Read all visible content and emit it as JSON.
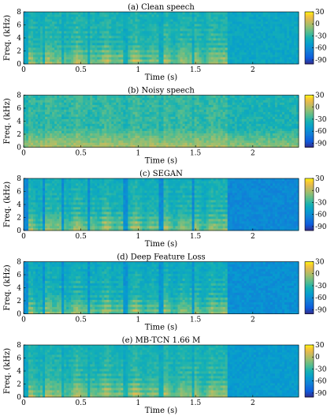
{
  "chart_data": [
    {
      "type": "heatmap",
      "title": "(a) Clean speech",
      "xlabel": "Time (s)",
      "ylabel": "Freq. (kHz)",
      "xlim": [
        0,
        2.4
      ],
      "ylim": [
        0,
        8
      ],
      "xticks": [
        "0",
        "0.5",
        "1",
        "1.5",
        "2"
      ],
      "xtick_values": [
        0,
        0.5,
        1,
        1.5,
        2
      ],
      "yticks": [
        "0",
        "2",
        "4",
        "6",
        "8"
      ],
      "ytick_values": [
        0,
        2,
        4,
        6,
        8
      ],
      "colorbar": {
        "range": [
          -100,
          30
        ],
        "ticks": [
          "30",
          "0",
          "-30",
          "-60",
          "-90"
        ],
        "tick_values": [
          30,
          0,
          -30,
          -60,
          -90
        ],
        "colormap": "parula"
      },
      "texture": "clean"
    },
    {
      "type": "heatmap",
      "title": "(b) Noisy speech",
      "xlabel": "Time (s)",
      "ylabel": "Freq. (kHz)",
      "xlim": [
        0,
        2.4
      ],
      "ylim": [
        0,
        8
      ],
      "xticks": [
        "0",
        "0.5",
        "1",
        "1.5",
        "2"
      ],
      "xtick_values": [
        0,
        0.5,
        1,
        1.5,
        2
      ],
      "yticks": [
        "0",
        "2",
        "4",
        "6",
        "8"
      ],
      "ytick_values": [
        0,
        2,
        4,
        6,
        8
      ],
      "colorbar": {
        "range": [
          -100,
          30
        ],
        "ticks": [
          "30",
          "0",
          "-30",
          "-60",
          "-90"
        ],
        "tick_values": [
          30,
          0,
          -30,
          -60,
          -90
        ],
        "colormap": "parula"
      },
      "texture": "noisy"
    },
    {
      "type": "heatmap",
      "title": "(c) SEGAN",
      "xlabel": "Time (s)",
      "ylabel": "Freq. (kHz)",
      "xlim": [
        0,
        2.4
      ],
      "ylim": [
        0,
        8
      ],
      "xticks": [
        "0",
        "0.5",
        "1",
        "1.5",
        "2"
      ],
      "xtick_values": [
        0,
        0.5,
        1,
        1.5,
        2
      ],
      "yticks": [
        "0",
        "2",
        "4",
        "6",
        "8"
      ],
      "ytick_values": [
        0,
        2,
        4,
        6,
        8
      ],
      "colorbar": {
        "range": [
          -100,
          30
        ],
        "ticks": [
          "30",
          "0",
          "-30",
          "-60",
          "-90"
        ],
        "tick_values": [
          30,
          0,
          -30,
          -60,
          -90
        ],
        "colormap": "parula"
      },
      "texture": "segan"
    },
    {
      "type": "heatmap",
      "title": "(d) Deep Feature Loss",
      "xlabel": "Time (s)",
      "ylabel": "Freq. (kHz)",
      "xlim": [
        0,
        2.4
      ],
      "ylim": [
        0,
        8
      ],
      "xticks": [
        "0",
        "0.5",
        "1",
        "1.5",
        "2"
      ],
      "xtick_values": [
        0,
        0.5,
        1,
        1.5,
        2
      ],
      "yticks": [
        "0",
        "2",
        "4",
        "6",
        "8"
      ],
      "ytick_values": [
        0,
        2,
        4,
        6,
        8
      ],
      "colorbar": {
        "range": [
          -100,
          30
        ],
        "ticks": [
          "30",
          "0",
          "-30",
          "-60",
          "-90"
        ],
        "tick_values": [
          30,
          0,
          -30,
          -60,
          -90
        ],
        "colormap": "parula"
      },
      "texture": "dfl"
    },
    {
      "type": "heatmap",
      "title": "(e) MB-TCN  1.66 M",
      "xlabel": "Time (s)",
      "ylabel": "Freq. (kHz)",
      "xlim": [
        0,
        2.4
      ],
      "ylim": [
        0,
        8
      ],
      "xticks": [
        "0",
        "0.5",
        "1",
        "1.5",
        "2"
      ],
      "xtick_values": [
        0,
        0.5,
        1,
        1.5,
        2
      ],
      "yticks": [
        "0",
        "2",
        "4",
        "6",
        "8"
      ],
      "ytick_values": [
        0,
        2,
        4,
        6,
        8
      ],
      "colorbar": {
        "range": [
          -100,
          30
        ],
        "ticks": [
          "30",
          "0",
          "-30",
          "-60",
          "-90"
        ],
        "tick_values": [
          30,
          0,
          -30,
          -60,
          -90
        ],
        "colormap": "parula"
      },
      "texture": "mbtcn"
    }
  ]
}
